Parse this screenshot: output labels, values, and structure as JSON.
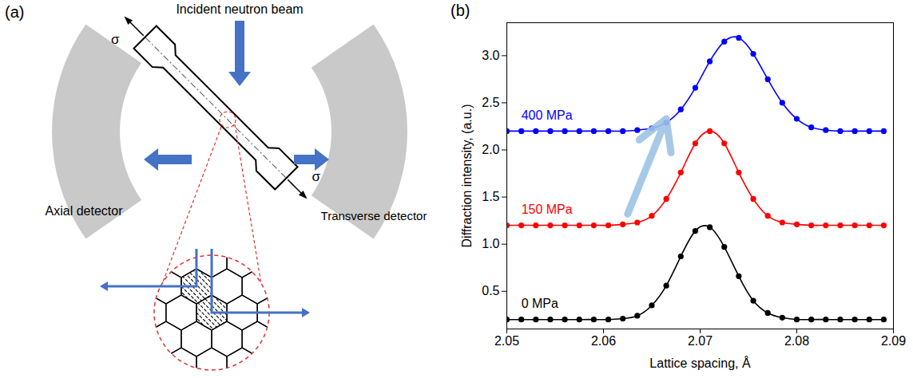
{
  "diagram": {
    "panel_label": "(a)",
    "beam_label": "Incident neutron beam",
    "axial_detector": "Axial detector",
    "transverse_detector": "Transverse detector",
    "stress_labels": [
      "σ",
      "σ"
    ]
  },
  "chart_data": {
    "type": "line",
    "panel_label": "(b)",
    "x_label": "Lattice spacing, Å",
    "y_label": "Diffraction intensity, (a.u.)",
    "x": [
      2.05,
      2.0515,
      2.053,
      2.0545,
      2.056,
      2.0575,
      2.059,
      2.0605,
      2.062,
      2.0635,
      2.065,
      2.0665,
      2.068,
      2.0695,
      2.071,
      2.0725,
      2.074,
      2.0755,
      2.077,
      2.0785,
      2.08,
      2.0815,
      2.083,
      2.0845,
      2.086,
      2.0875,
      2.089
    ],
    "series": [
      {
        "name": "0 MPa",
        "color": "#000000",
        "marker": "circle",
        "line_style": "solid",
        "values": [
          0.2,
          0.2,
          0.2,
          0.2,
          0.2,
          0.2,
          0.2,
          0.2,
          0.21,
          0.24,
          0.35,
          0.56,
          0.87,
          1.14,
          1.18,
          0.97,
          0.66,
          0.4,
          0.27,
          0.22,
          0.2,
          0.2,
          0.2,
          0.2,
          0.2,
          0.2,
          0.2
        ]
      },
      {
        "name": "150 MPa",
        "color": "#ff0000",
        "marker": "circle",
        "line_style": "solid",
        "values": [
          1.2,
          1.2,
          1.2,
          1.2,
          1.2,
          1.2,
          1.2,
          1.2,
          1.21,
          1.23,
          1.3,
          1.48,
          1.76,
          2.07,
          2.2,
          2.07,
          1.76,
          1.48,
          1.3,
          1.23,
          1.21,
          1.2,
          1.2,
          1.2,
          1.2,
          1.2,
          1.2
        ]
      },
      {
        "name": "400 MPa",
        "color": "#0000ff",
        "marker": "circle",
        "line_style": "solid",
        "values": [
          2.2,
          2.2,
          2.2,
          2.2,
          2.2,
          2.2,
          2.2,
          2.2,
          2.2,
          2.21,
          2.23,
          2.29,
          2.43,
          2.66,
          2.94,
          3.15,
          3.19,
          3.02,
          2.75,
          2.5,
          2.33,
          2.24,
          2.21,
          2.2,
          2.2,
          2.2,
          2.2
        ]
      }
    ],
    "xlim": [
      2.05,
      2.09
    ],
    "xticks": [
      2.05,
      2.06,
      2.07,
      2.08,
      2.09
    ],
    "ylim": [
      0.1,
      3.35
    ],
    "yticks": [
      0.5,
      {
        "value": 1,
        "label": "1.0"
      },
      1.5,
      {
        "value": 2,
        "label": "2.0"
      },
      2.5,
      {
        "value": 3,
        "label": "3.0"
      }
    ],
    "grid": false,
    "arrow": {
      "from": [
        2.0625,
        1.32
      ],
      "to": [
        2.0665,
        2.33
      ],
      "color": "#9dc3e6"
    }
  }
}
